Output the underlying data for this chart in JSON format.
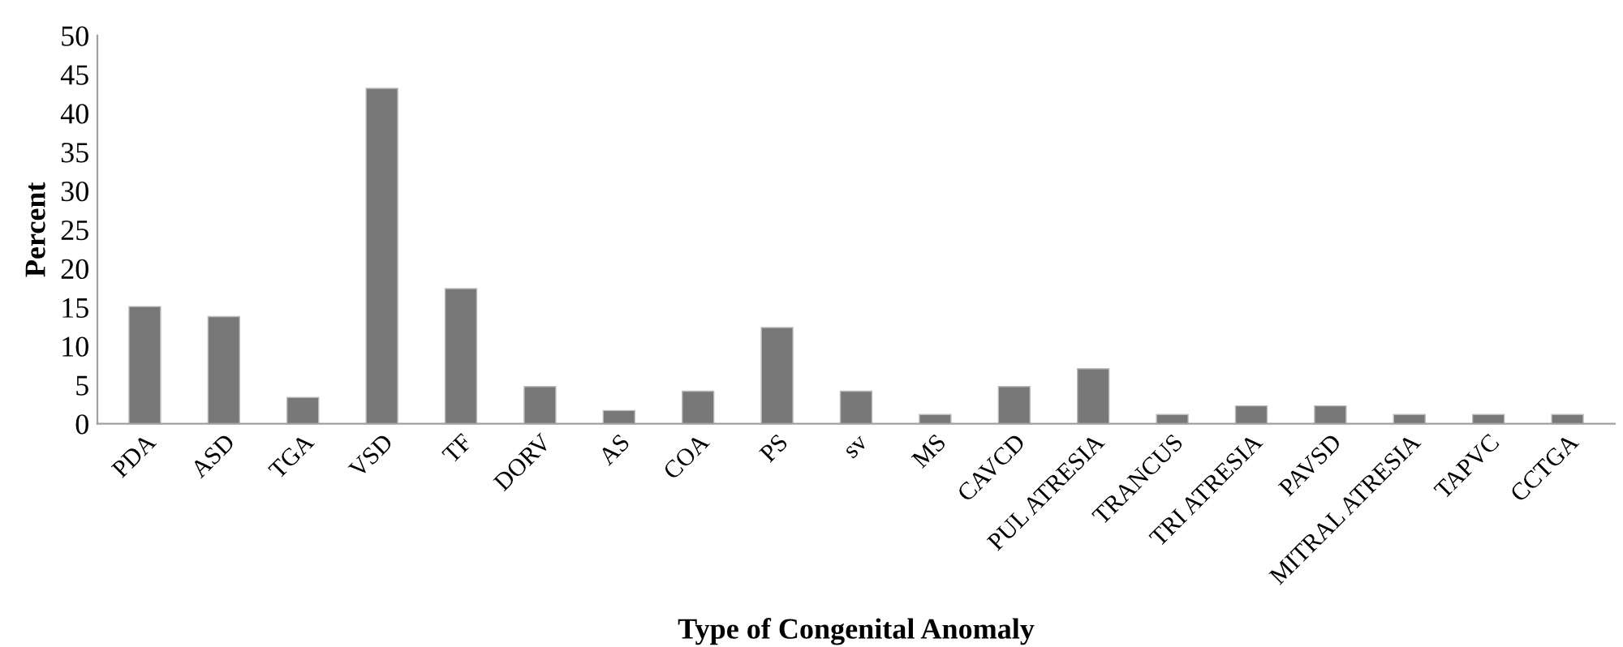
{
  "chart_data": {
    "type": "bar",
    "xlabel": "Type of Congenital Anomaly",
    "ylabel": "Percent",
    "categories": [
      "PDA",
      "ASD",
      "TGA",
      "VSD",
      "TF",
      "DORV",
      "AS",
      "COA",
      "PS",
      "sv",
      "MS",
      "CAVCD",
      "PUL ATRESIA",
      "TRANCUS",
      "TRI ATRESIA",
      "PAVSD",
      "MITRAL ATRESIA",
      "TAPVC",
      "CCTGA"
    ],
    "values": [
      15.1,
      13.8,
      3.4,
      43.2,
      17.4,
      4.8,
      1.7,
      4.2,
      12.4,
      4.2,
      1.2,
      4.8,
      7.1,
      1.2,
      2.3,
      2.3,
      1.2,
      1.2,
      1.2
    ],
    "color": "#787878",
    "ylim": [
      0,
      50
    ],
    "yticks": [
      0,
      5,
      10,
      15,
      20,
      25,
      30,
      35,
      40,
      45,
      50
    ],
    "grid": false
  }
}
